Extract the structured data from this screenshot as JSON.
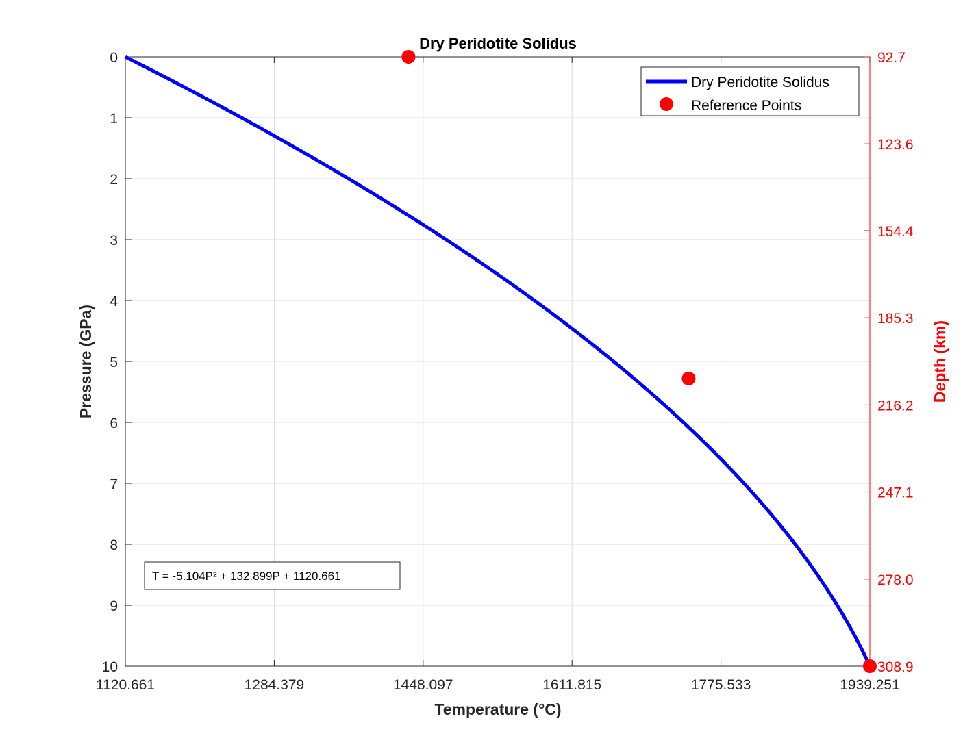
{
  "chart_data": {
    "type": "line",
    "title": "Dry Peridotite Solidus",
    "xlabel": "Temperature (°C)",
    "ylabel": "Pressure (GPa)",
    "y2label": "Depth (km)",
    "xlim": [
      1120.661,
      1939.251
    ],
    "ylim": [
      0,
      10
    ],
    "y_reversed": true,
    "y2lim": [
      92.7,
      308.9
    ],
    "x_ticks": [
      "1120.661",
      "1284.379",
      "1448.097",
      "1611.815",
      "1775.533",
      "1939.251"
    ],
    "y_ticks": [
      "0",
      "1",
      "2",
      "3",
      "4",
      "5",
      "6",
      "7",
      "8",
      "9",
      "10"
    ],
    "y2_ticks": [
      "92.7",
      "123.6",
      "154.4",
      "185.3",
      "216.2",
      "247.1",
      "278.0",
      "308.9"
    ],
    "grid": true,
    "legend_position": "top-right",
    "series": [
      {
        "name": "Dry Peridotite Solidus",
        "kind": "line",
        "color": "#0000ff",
        "equation": {
          "a": -5.104,
          "b": 132.899,
          "c": 1120.661
        },
        "p_range": [
          0,
          10
        ]
      },
      {
        "name": "Reference Points",
        "kind": "scatter",
        "color": "#ff0000",
        "points": [
          {
            "x": 1432.0,
            "y": 0.0
          },
          {
            "x": 1740.0,
            "y": 5.28
          },
          {
            "x": 1939.251,
            "y": 10.0
          }
        ]
      }
    ],
    "annotation": "T = -5.104P² + 132.899P + 1120.661",
    "colors": {
      "axis_left": "#262626",
      "axis_right": "#ff0000",
      "grid": "#dcdcdc"
    }
  }
}
